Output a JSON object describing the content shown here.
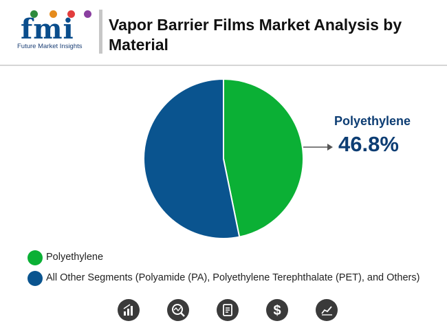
{
  "header": {
    "logo_text": "fmi",
    "logo_subtitle": "Future Market Insights",
    "title": "Vapor Barrier Films Market Analysis by Material"
  },
  "colors": {
    "polyethylene": "#0bb035",
    "others": "#0a548f",
    "callout": "#0d3d73"
  },
  "callout": {
    "label": "Polyethylene",
    "value": "46.8%"
  },
  "legend": [
    {
      "label": "Polyethylene",
      "color": "#0bb035"
    },
    {
      "label": "All Other Segments (Polyamide (PA), Polyethylene Terephthalate (PET), and Others)",
      "color": "#0a548f"
    }
  ],
  "chart_data": {
    "type": "pie",
    "title": "Vapor Barrier Films Market Analysis by Material",
    "slices": [
      {
        "name": "Polyethylene",
        "value": 46.8,
        "color": "#0bb035"
      },
      {
        "name": "All Other Segments (Polyamide (PA), Polyethylene Terephthalate (PET), and Others)",
        "value": 53.2,
        "color": "#0a548f"
      }
    ],
    "legend_position": "bottom-left",
    "annotations": [
      {
        "target": "Polyethylene",
        "label": "Polyethylene",
        "value": "46.8%"
      }
    ]
  },
  "footer_icons": [
    "bar-chart-icon",
    "magnifier-chart-icon",
    "document-icon",
    "dollar-icon",
    "line-chart-icon"
  ]
}
